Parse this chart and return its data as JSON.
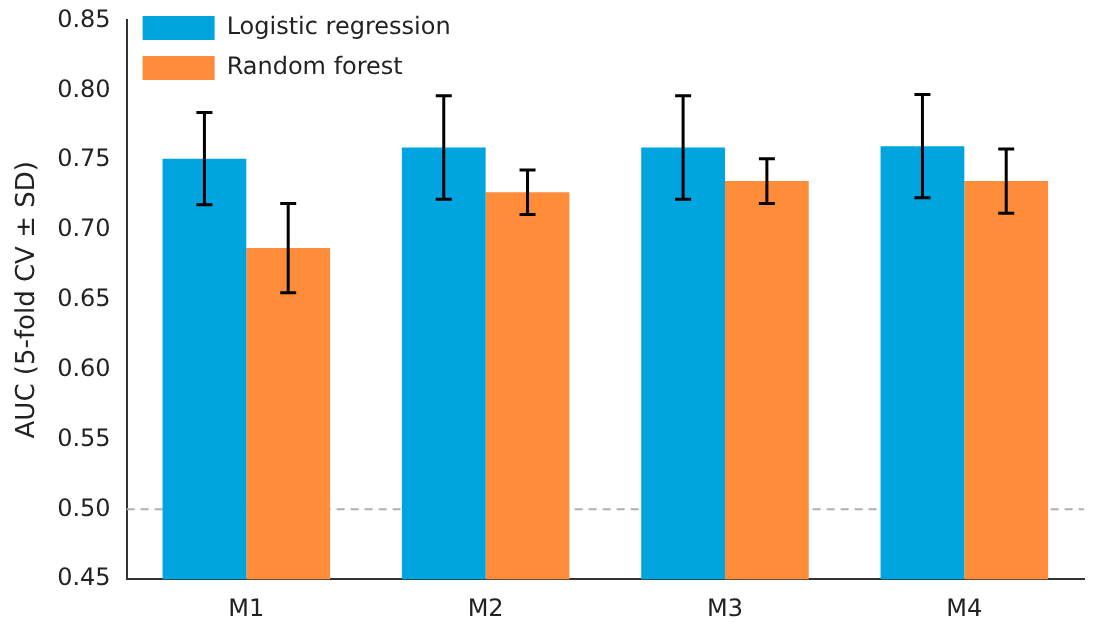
{
  "chart_data": {
    "type": "bar",
    "ylabel": "AUC (5-fold CV ± SD)",
    "categories": [
      "M1",
      "M2",
      "M3",
      "M4"
    ],
    "series": [
      {
        "name": "Logistic regression",
        "color": "#00a5df",
        "values": [
          0.751,
          0.759,
          0.759,
          0.76
        ],
        "errors": [
          0.033,
          0.037,
          0.037,
          0.037
        ]
      },
      {
        "name": "Random forest",
        "color": "#ff8c38",
        "values": [
          0.687,
          0.727,
          0.735,
          0.735
        ],
        "errors": [
          0.032,
          0.016,
          0.016,
          0.023
        ]
      }
    ],
    "ylim": [
      0.45,
      0.85
    ],
    "yticks": [
      0.45,
      {
        "value": 0.5,
        "label": "0.50"
      },
      0.55,
      {
        "value": 0.6,
        "label": "0.60"
      },
      0.65,
      {
        "value": 0.7,
        "label": "0.70"
      },
      0.75,
      {
        "value": 0.8,
        "label": "0.80"
      },
      0.85
    ],
    "grid": false,
    "legend": "top left",
    "ref_lines": [
      {
        "axis": "y",
        "value": 0.5,
        "color": "#b0b0b0",
        "line_style": "dashed"
      }
    ]
  }
}
